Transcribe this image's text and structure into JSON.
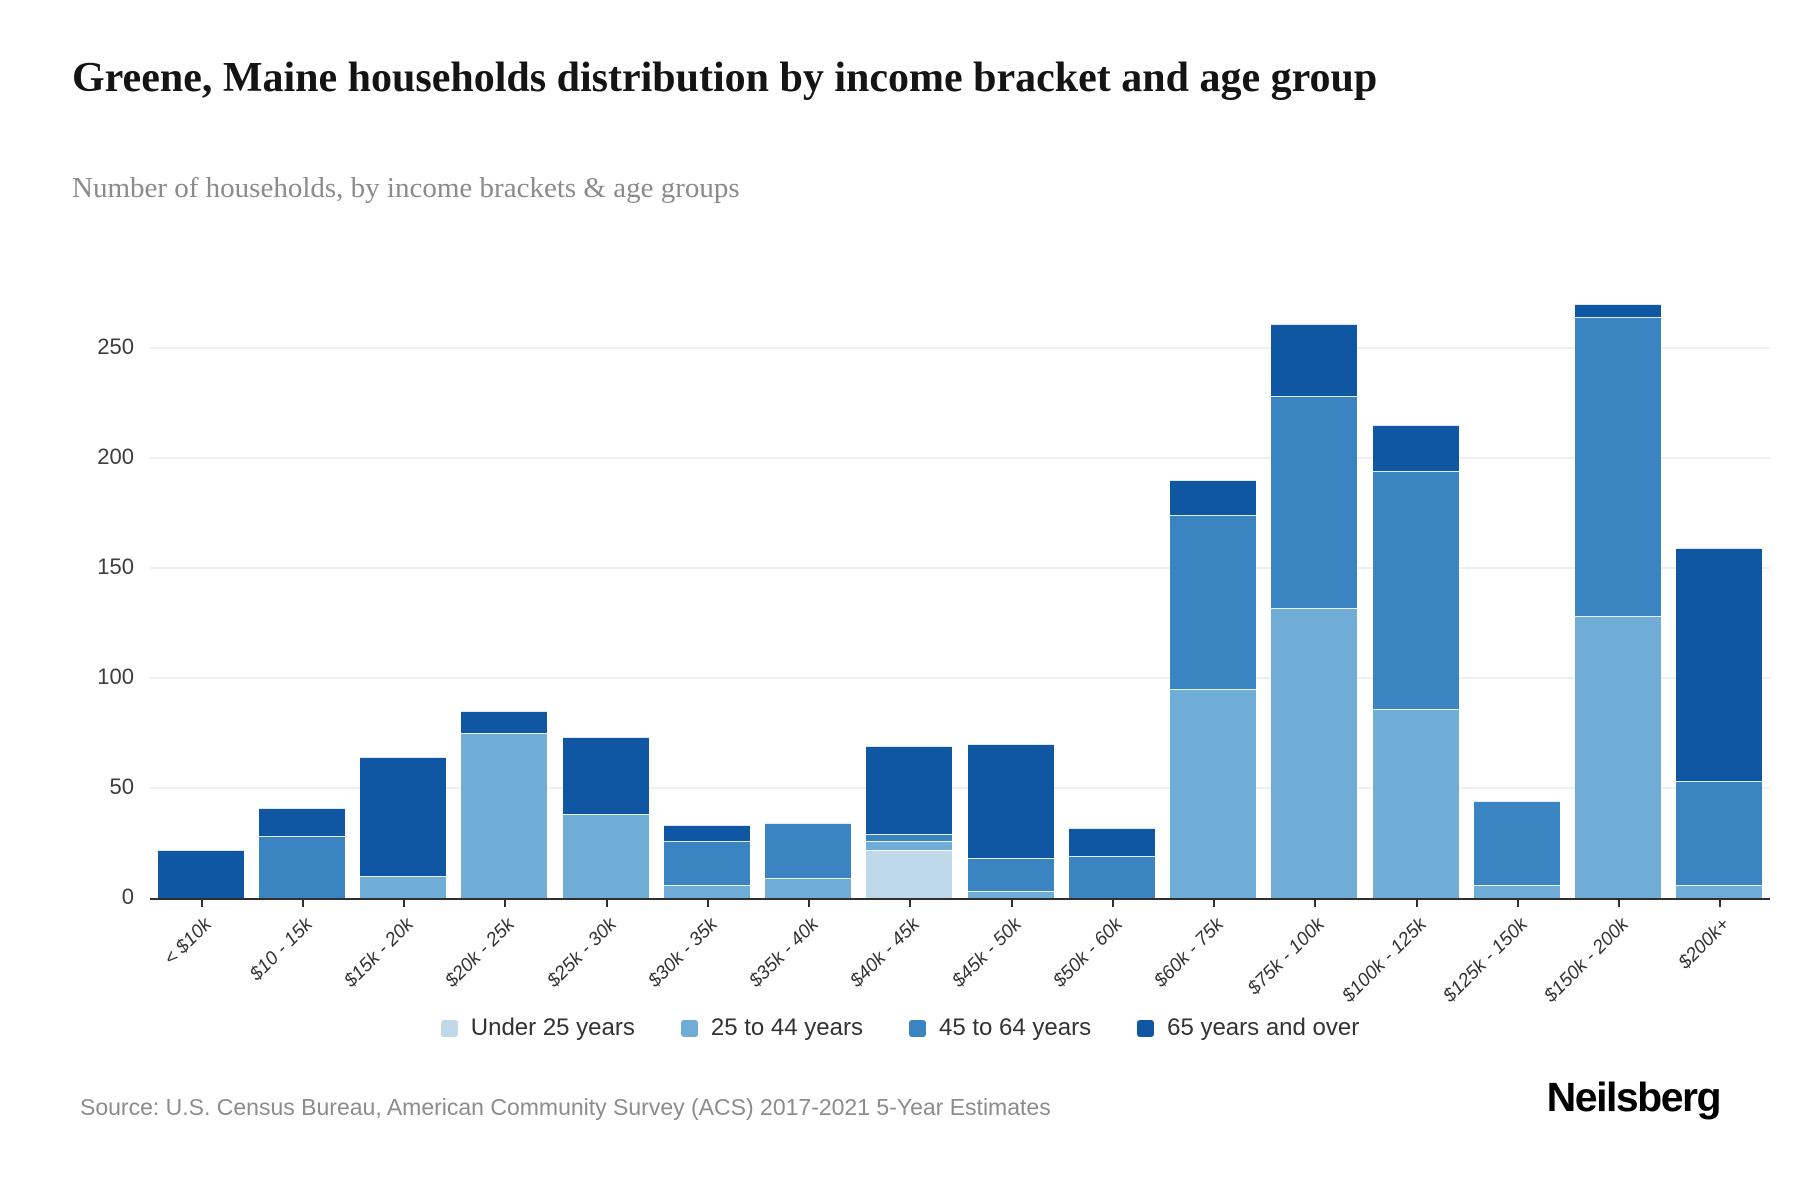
{
  "header": {
    "title": "Greene, Maine households distribution by income bracket and age group",
    "subtitle": "Number of households, by income brackets & age groups"
  },
  "chart_data": {
    "type": "bar",
    "stacked": true,
    "title": "Greene, Maine households distribution by income bracket and age group",
    "subtitle": "Number of households, by income brackets & age groups",
    "categories": [
      "< $10k",
      "$10 - 15k",
      "$15k - 20k",
      "$20k - 25k",
      "$25k - 30k",
      "$30k - 35k",
      "$35k - 40k",
      "$40k - 45k",
      "$45k - 50k",
      "$50k - 60k",
      "$60k - 75k",
      "$75k - 100k",
      "$100k - 125k",
      "$125k - 150k",
      "$150k - 200k",
      "$200k+"
    ],
    "series": [
      {
        "name": "Under 25 years",
        "color": "#bfd8ea",
        "values": [
          0,
          0,
          0,
          0,
          0,
          0,
          0,
          22,
          0,
          0,
          0,
          0,
          0,
          0,
          0,
          0
        ]
      },
      {
        "name": "25 to 44 years",
        "color": "#6fadd6",
        "values": [
          0,
          0,
          10,
          75,
          38,
          6,
          9,
          4,
          3,
          0,
          95,
          132,
          86,
          6,
          128,
          6
        ]
      },
      {
        "name": "45 to 64 years",
        "color": "#3a84c1",
        "values": [
          0,
          28,
          0,
          0,
          0,
          20,
          25,
          3,
          15,
          19,
          79,
          96,
          108,
          38,
          136,
          47
        ]
      },
      {
        "name": "65 years and over",
        "color": "#1057a3",
        "values": [
          22,
          13,
          54,
          10,
          35,
          7,
          0,
          40,
          52,
          13,
          16,
          33,
          21,
          0,
          6,
          106
        ]
      }
    ],
    "totals": [
      22,
      41,
      64,
      85,
      73,
      33,
      34,
      69,
      70,
      32,
      190,
      261,
      215,
      44,
      270,
      159
    ],
    "xlabel": "",
    "ylabel": "",
    "ylim": [
      0,
      286
    ],
    "yticks": [
      0,
      50,
      100,
      150,
      200,
      250
    ],
    "grid": true,
    "legend_position": "bottom"
  },
  "footer": {
    "source": "Source: U.S. Census Bureau, American Community Survey (ACS) 2017-2021 5-Year Estimates",
    "brand": "Neilsberg"
  }
}
